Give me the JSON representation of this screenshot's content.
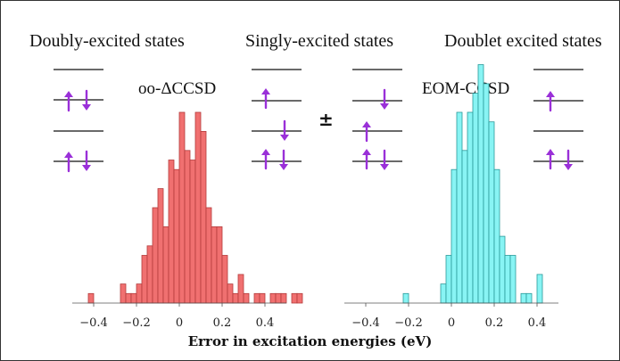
{
  "labels": {
    "doubly": "Doubly-excited states",
    "singly": "Singly-excited states",
    "doublet": "Doublet excited states",
    "method_left": "oo-ΔCCSD",
    "method_right": "EOM-CCSD",
    "pm": "±",
    "xlabel": "Error in excitation energies (eV)"
  },
  "colors": {
    "left_bars": "#f07070",
    "left_edge": "#b43c3c",
    "right_bars": "#88f4f4",
    "right_edge": "#2a9a9a",
    "arrows": "#9a30d8",
    "lines": "#111111"
  },
  "icons": [
    "up-arrow-icon",
    "down-arrow-icon"
  ],
  "chart_data": [
    {
      "type": "bar",
      "title": "oo-ΔCCSD",
      "xlabel": "Error in excitation energies (eV)",
      "xlim": [
        -0.5,
        0.5
      ],
      "xticks": [
        -0.4,
        -0.2,
        0,
        0.2,
        0.4
      ],
      "bin_width": 0.025,
      "bin_start": -0.425,
      "counts": [
        1,
        0,
        0,
        0,
        0,
        0,
        2,
        1,
        1,
        2,
        5,
        6,
        10,
        12,
        8,
        15,
        14,
        20,
        16,
        15,
        20,
        18,
        10,
        8,
        8,
        5,
        2,
        1,
        3,
        1,
        0,
        1,
        1,
        0,
        1,
        1,
        1,
        0,
        1,
        1
      ]
    },
    {
      "type": "bar",
      "title": "EOM-CCSD",
      "xlabel": "Error in excitation energies (eV)",
      "xlim": [
        -0.5,
        0.5
      ],
      "xticks": [
        -0.4,
        -0.2,
        0,
        0.2,
        0.4
      ],
      "bin_width": 0.025,
      "bin_start": -0.225,
      "counts": [
        1,
        0,
        0,
        0,
        0,
        0,
        0,
        2,
        5,
        14,
        20,
        16,
        20,
        22,
        25,
        23,
        19,
        14,
        7,
        5,
        5,
        0,
        1,
        1,
        0,
        3
      ]
    }
  ]
}
